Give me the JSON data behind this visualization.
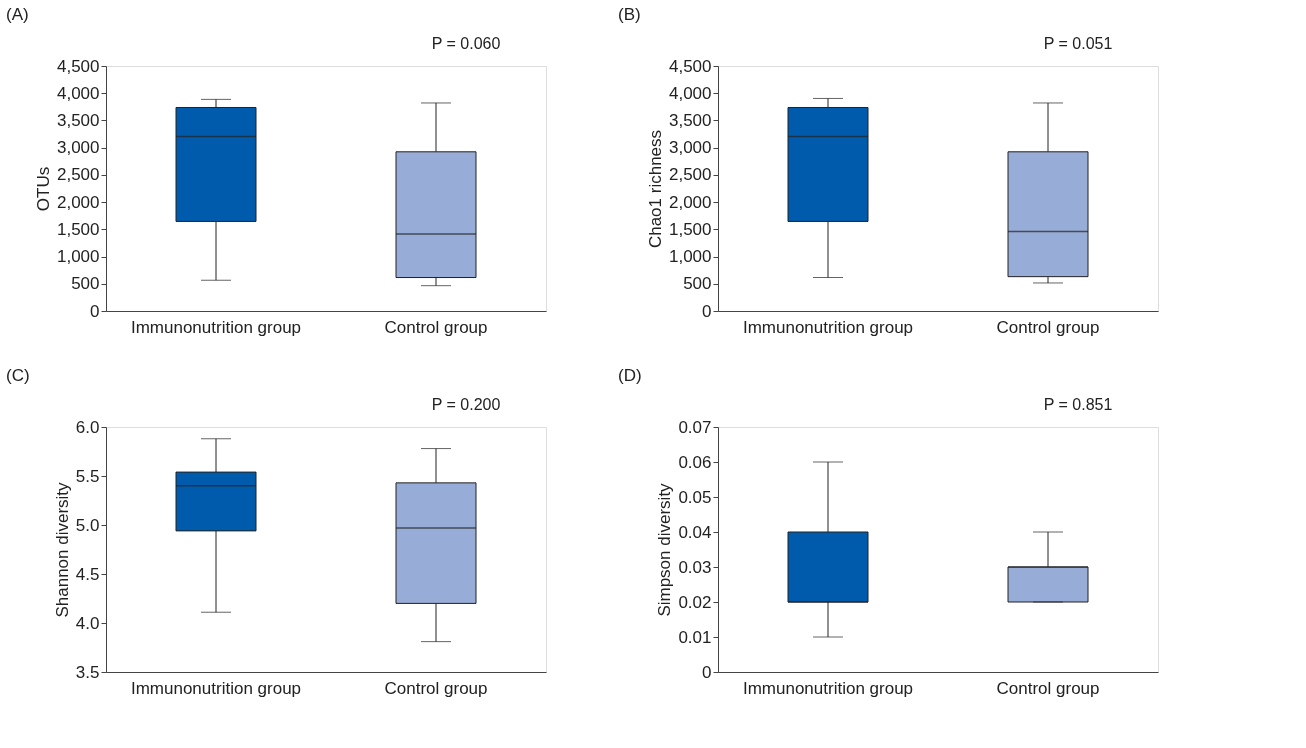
{
  "chart_data": [
    {
      "type": "box",
      "title": "(A)",
      "ylabel": "OTUs",
      "annotations": [
        "P = 0.060"
      ],
      "categories": [
        "Immunonutrition group",
        "Control group"
      ],
      "colors": [
        "#005bac",
        "#97acd6"
      ],
      "boxes": [
        {
          "low": 565,
          "q1": 1645,
          "median": 3206,
          "q3": 3738,
          "high": 3887
        },
        {
          "low": 465,
          "q1": 615,
          "median": 1412,
          "q3": 2924,
          "high": 3821
        }
      ],
      "ylim": [
        0,
        4500
      ],
      "yticks": [
        0,
        {
          "value": 500,
          "label": "500"
        },
        {
          "value": 1000,
          "label": "1,000"
        },
        {
          "value": 1500,
          "label": "1,500"
        },
        {
          "value": 2000,
          "label": "2,000"
        },
        {
          "value": 2500,
          "label": "2,500"
        },
        {
          "value": 3000,
          "label": "3,000"
        },
        {
          "value": 3500,
          "label": "3,500"
        },
        {
          "value": 4000,
          "label": "4,000"
        },
        {
          "value": 4500,
          "label": "4,500"
        }
      ]
    },
    {
      "type": "box",
      "title": "(B)",
      "ylabel": "Chao1 richness",
      "annotations": [
        "P = 0.051"
      ],
      "categories": [
        "Immunonutrition group",
        "Control group"
      ],
      "colors": [
        "#005bac",
        "#97acd6"
      ],
      "boxes": [
        {
          "low": 615,
          "q1": 1645,
          "median": 3206,
          "q3": 3738,
          "high": 3904
        },
        {
          "low": 515,
          "q1": 631,
          "median": 1460,
          "q3": 2924,
          "high": 3821
        }
      ],
      "ylim": [
        0,
        4500
      ],
      "yticks": [
        0,
        {
          "value": 500,
          "label": "500"
        },
        {
          "value": 1000,
          "label": "1,000"
        },
        {
          "value": 1500,
          "label": "1,500"
        },
        {
          "value": 2000,
          "label": "2,000"
        },
        {
          "value": 2500,
          "label": "2,500"
        },
        {
          "value": 3000,
          "label": "3,000"
        },
        {
          "value": 3500,
          "label": "3,500"
        },
        {
          "value": 4000,
          "label": "4,000"
        },
        {
          "value": 4500,
          "label": "4,500"
        }
      ]
    },
    {
      "type": "box",
      "title": "(C)",
      "ylabel": "Shannon diversity",
      "annotations": [
        "P = 0.200"
      ],
      "categories": [
        "Immunonutrition group",
        "Control group"
      ],
      "colors": [
        "#005bac",
        "#97acd6"
      ],
      "boxes": [
        {
          "low": 4.11,
          "q1": 4.94,
          "median": 5.4,
          "q3": 5.54,
          "high": 5.88
        },
        {
          "low": 3.81,
          "q1": 4.2,
          "median": 4.97,
          "q3": 5.43,
          "high": 5.78
        }
      ],
      "ylim": [
        3.5,
        6.0
      ],
      "yticks": [
        3.5,
        {
          "value": 4,
          "label": "4.0"
        },
        4.5,
        {
          "value": 5,
          "label": "5.0"
        },
        5.5,
        {
          "value": 6,
          "label": "6.0"
        }
      ]
    },
    {
      "type": "box",
      "title": "(D)",
      "ylabel": "Simpson diversity",
      "annotations": [
        "P = 0.851"
      ],
      "categories": [
        "Immunonutrition group",
        "Control group"
      ],
      "colors": [
        "#005bac",
        "#97acd6"
      ],
      "boxes": [
        {
          "low": 0.01,
          "q1": 0.02,
          "median": 0.02,
          "q3": 0.04,
          "high": 0.06
        },
        {
          "low": 0.02,
          "q1": 0.02,
          "median": 0.03,
          "q3": 0.03,
          "high": 0.04
        }
      ],
      "ylim": [
        0,
        0.07
      ],
      "yticks": [
        0,
        0.01,
        0.02,
        0.03,
        0.04,
        0.05,
        0.06,
        0.07
      ]
    }
  ]
}
